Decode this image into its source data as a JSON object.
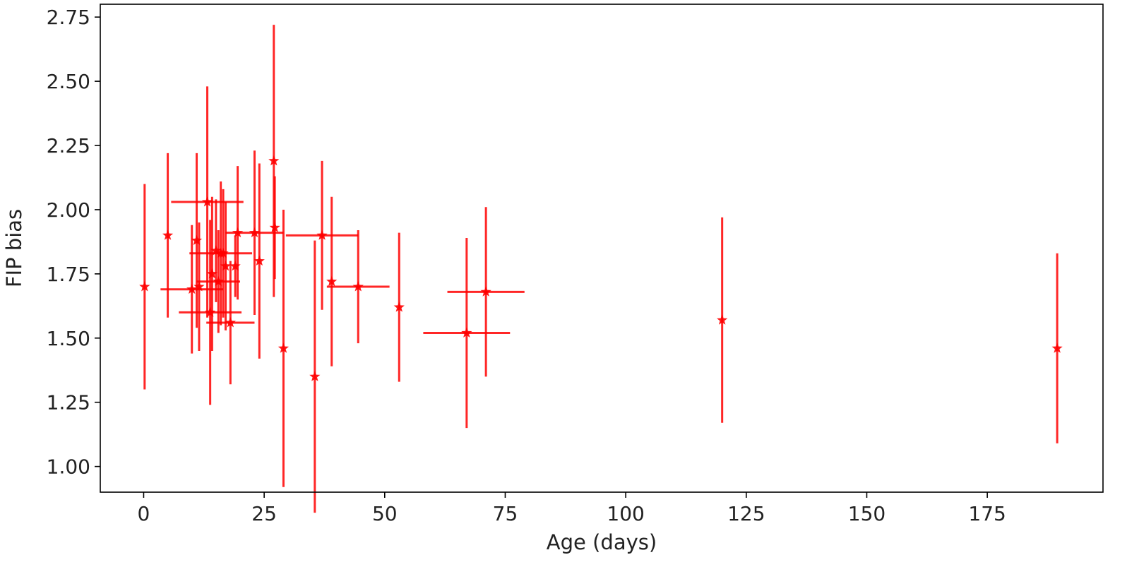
{
  "chart_data": {
    "type": "scatter",
    "title": "",
    "xlabel": "Age (days)",
    "ylabel": "FIP bias",
    "xlim": [
      -9,
      199
    ],
    "ylim": [
      0.9,
      2.8
    ],
    "x_ticks": [
      "0",
      "25",
      "50",
      "75",
      "100",
      "125",
      "150",
      "175"
    ],
    "y_ticks": [
      "1.00",
      "1.25",
      "1.50",
      "1.75",
      "2.00",
      "2.25",
      "2.50",
      "2.75"
    ],
    "grid": false,
    "marker": "star",
    "color": "#ff0000",
    "points": [
      {
        "x": 0.2,
        "y": 1.7,
        "yerr": 0.4,
        "xerr": 0
      },
      {
        "x": 5.0,
        "y": 1.9,
        "yerr": 0.32,
        "xerr": 0
      },
      {
        "x": 10.0,
        "y": 1.69,
        "yerr": 0.25,
        "xerr": 6.5
      },
      {
        "x": 11.0,
        "y": 1.88,
        "yerr": 0.34,
        "xerr": 0
      },
      {
        "x": 11.5,
        "y": 1.7,
        "yerr": 0.25,
        "xerr": 0
      },
      {
        "x": 13.2,
        "y": 2.03,
        "yerr": 0.45,
        "xerr": 7.5
      },
      {
        "x": 13.8,
        "y": 1.6,
        "yerr": 0.36,
        "xerr": 6.5
      },
      {
        "x": 14.2,
        "y": 1.75,
        "yerr": 0.3,
        "xerr": 0
      },
      {
        "x": 15.0,
        "y": 1.84,
        "yerr": 0.2,
        "xerr": 0
      },
      {
        "x": 15.5,
        "y": 1.72,
        "yerr": 0.2,
        "xerr": 4.5
      },
      {
        "x": 16.0,
        "y": 1.83,
        "yerr": 0.28,
        "xerr": 6.5
      },
      {
        "x": 16.5,
        "y": 1.83,
        "yerr": 0.25,
        "xerr": 0
      },
      {
        "x": 17.0,
        "y": 1.78,
        "yerr": 0.25,
        "xerr": 0
      },
      {
        "x": 18.0,
        "y": 1.56,
        "yerr": 0.24,
        "xerr": 5.0
      },
      {
        "x": 19.0,
        "y": 1.78,
        "yerr": 0.12,
        "xerr": 0
      },
      {
        "x": 19.5,
        "y": 1.91,
        "yerr": 0.26,
        "xerr": 0
      },
      {
        "x": 23.0,
        "y": 1.91,
        "yerr": 0.32,
        "xerr": 6.0
      },
      {
        "x": 24.0,
        "y": 1.8,
        "yerr": 0.38,
        "xerr": 0
      },
      {
        "x": 27.0,
        "y": 2.19,
        "yerr": 0.53,
        "xerr": 0
      },
      {
        "x": 27.2,
        "y": 1.93,
        "yerr": 0.2,
        "xerr": 0
      },
      {
        "x": 29.0,
        "y": 1.46,
        "yerr": 0.54,
        "xerr": 0
      },
      {
        "x": 35.5,
        "y": 1.35,
        "yerr": 0.53,
        "xerr": 0
      },
      {
        "x": 37.0,
        "y": 1.9,
        "yerr": 0.29,
        "xerr": 7.5
      },
      {
        "x": 39.0,
        "y": 1.72,
        "yerr": 0.33,
        "xerr": 0
      },
      {
        "x": 44.5,
        "y": 1.7,
        "yerr": 0.22,
        "xerr": 6.5
      },
      {
        "x": 53.0,
        "y": 1.62,
        "yerr": 0.29,
        "xerr": 0
      },
      {
        "x": 67.0,
        "y": 1.52,
        "yerr": 0.37,
        "xerr": 9.0
      },
      {
        "x": 71.0,
        "y": 1.68,
        "yerr": 0.33,
        "xerr": 8.0
      },
      {
        "x": 120.0,
        "y": 1.57,
        "yerr": 0.4,
        "xerr": 0
      },
      {
        "x": 189.5,
        "y": 1.46,
        "yerr": 0.37,
        "xerr": 0
      }
    ]
  }
}
